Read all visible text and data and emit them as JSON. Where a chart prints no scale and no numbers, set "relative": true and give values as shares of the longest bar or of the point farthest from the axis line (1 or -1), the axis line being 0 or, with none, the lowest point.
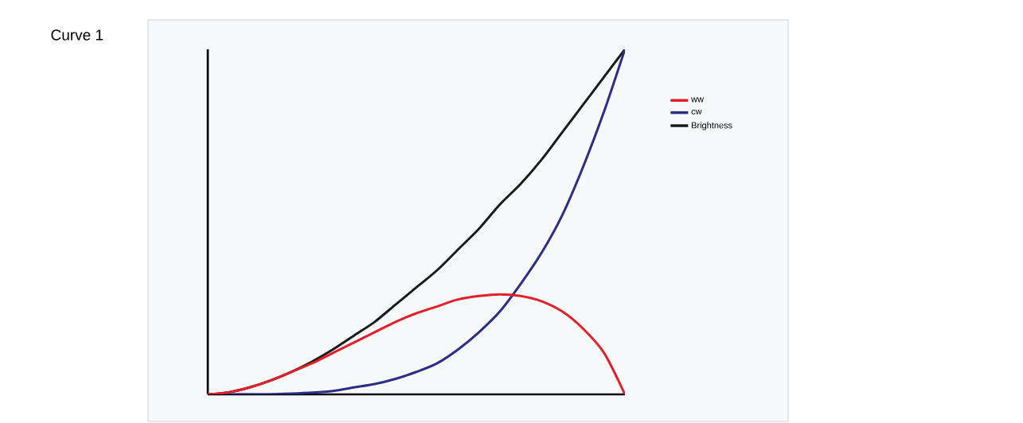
{
  "chart_data": {
    "type": "line",
    "title": "Curve 1",
    "relative": true,
    "legend": "top right",
    "marker": "none",
    "categories": [
      null,
      null,
      null,
      null,
      null,
      null,
      null,
      null,
      null,
      null,
      null,
      null,
      null,
      null,
      null,
      null,
      null,
      null,
      null,
      null,
      null
    ],
    "series": [
      {
        "name": "ww",
        "color": "#e3202a",
        "values": [
          0,
          0.006,
          0.02,
          0.04,
          0.065,
          0.09,
          0.12,
          0.15,
          0.18,
          0.21,
          0.235,
          0.255,
          0.275,
          0.285,
          0.29,
          0.285,
          0.27,
          0.24,
          0.19,
          0.12,
          0
        ]
      },
      {
        "name": "cw",
        "color": "#2b2d86",
        "values": [
          0,
          0,
          0,
          0,
          0.002,
          0.005,
          0.01,
          0.02,
          0.03,
          0.045,
          0.065,
          0.09,
          0.13,
          0.18,
          0.24,
          0.32,
          0.41,
          0.52,
          0.66,
          0.82,
          1
        ]
      },
      {
        "name": "Brightness",
        "color": "#1a1a1a",
        "values": [
          0,
          0.006,
          0.02,
          0.04,
          0.065,
          0.095,
          0.13,
          0.17,
          0.21,
          0.26,
          0.31,
          0.36,
          0.42,
          0.48,
          0.55,
          0.61,
          0.68,
          0.76,
          0.84,
          0.92,
          1
        ]
      }
    ]
  }
}
